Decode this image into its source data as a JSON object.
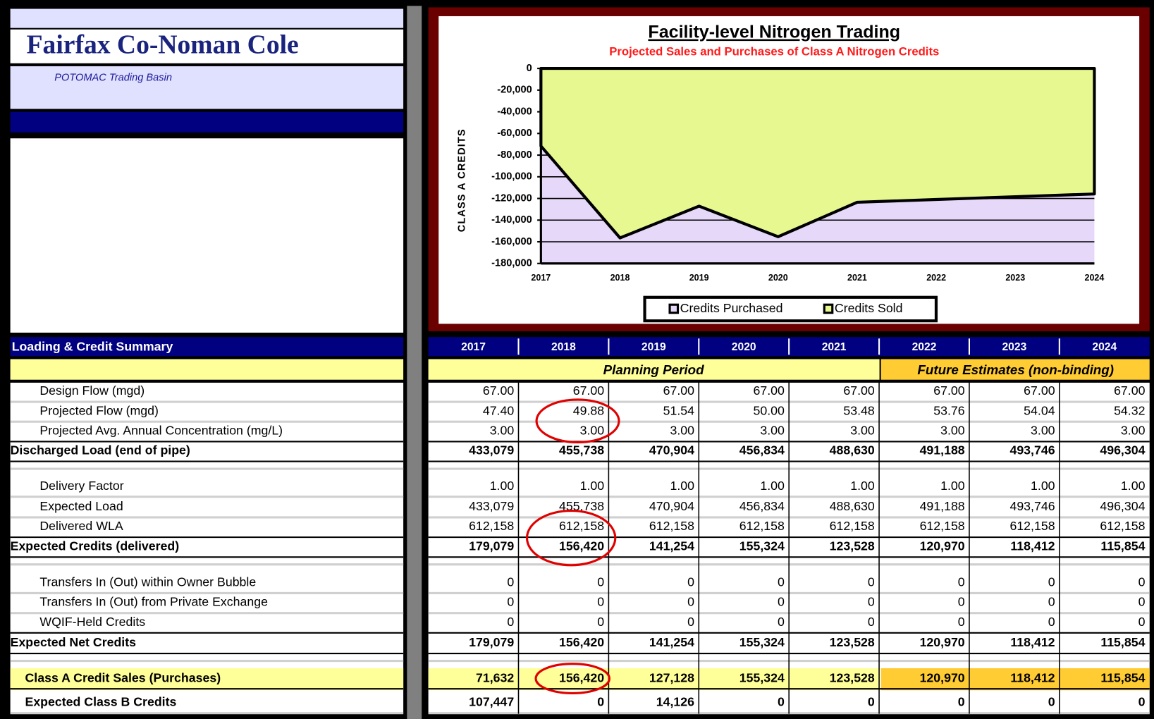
{
  "header": {
    "title": "Fairfax Co-Noman Cole",
    "subtitle": "POTOMAC Trading Basin"
  },
  "chart_data": {
    "type": "area",
    "title": "Facility-level Nitrogen Trading",
    "subtitle": "Projected Sales and Purchases of Class A Nitrogen Credits",
    "y_label": "CLASS A CREDITS",
    "categories": [
      "2017",
      "2018",
      "2019",
      "2020",
      "2021",
      "2022",
      "2023",
      "2024"
    ],
    "series": [
      {
        "name": "Credits Purchased",
        "color": "#e6d8f8",
        "values": [
          0,
          0,
          0,
          0,
          0,
          0,
          0,
          0
        ]
      },
      {
        "name": "Credits Sold",
        "color": "#e8f890",
        "values": [
          -71632,
          -156420,
          -127128,
          -155324,
          -123528,
          -120970,
          -118412,
          -115854
        ]
      }
    ],
    "plot_color": "#e6d8f8",
    "ylim": [
      -180000,
      0
    ],
    "yticks": [
      0,
      {
        "value": -20000,
        "label": "-20,000"
      },
      {
        "value": -40000,
        "label": "-40,000"
      },
      {
        "value": -60000,
        "label": "-60,000"
      },
      {
        "value": -80000,
        "label": "-80,000"
      },
      {
        "value": -100000,
        "label": "-100,000"
      },
      {
        "value": -120000,
        "label": "-120,000"
      },
      {
        "value": -140000,
        "label": "-140,000"
      },
      {
        "value": -160000,
        "label": "-160,000"
      },
      {
        "value": -180000,
        "label": "-180,000"
      }
    ],
    "grid": true,
    "legend": "bottom"
  },
  "table": {
    "title": "Loading & Credit Summary",
    "columns": [
      "2017",
      "2018",
      "2019",
      "2020",
      "2021",
      "2022",
      "2023",
      "2024"
    ],
    "periods": [
      "Planning Period",
      "Future Estimates (non-binding)"
    ],
    "rows": [
      {
        "label": "Design Flow (mgd)",
        "values": [
          "67.00",
          "67.00",
          "67.00",
          "67.00",
          "67.00",
          "67.00",
          "67.00",
          "67.00"
        ]
      },
      {
        "label": "Projected Flow (mgd)",
        "values": [
          "47.40",
          "49.88",
          "51.54",
          "50.00",
          "53.48",
          "53.76",
          "54.04",
          "54.32"
        ]
      },
      {
        "label": "Projected Avg. Annual Concentration (mg/L)",
        "values": [
          "3.00",
          "3.00",
          "3.00",
          "3.00",
          "3.00",
          "3.00",
          "3.00",
          "3.00"
        ]
      },
      {
        "label": "Discharged Load (end of pipe)",
        "values": [
          "433,079",
          "455,738",
          "470,904",
          "456,834",
          "488,630",
          "491,188",
          "493,746",
          "496,304"
        ]
      },
      {
        "label": "Delivery Factor",
        "values": [
          "1.00",
          "1.00",
          "1.00",
          "1.00",
          "1.00",
          "1.00",
          "1.00",
          "1.00"
        ]
      },
      {
        "label": "Expected Load",
        "values": [
          "433,079",
          "455,738",
          "470,904",
          "456,834",
          "488,630",
          "491,188",
          "493,746",
          "496,304"
        ]
      },
      {
        "label": "Delivered WLA",
        "values": [
          "612,158",
          "612,158",
          "612,158",
          "612,158",
          "612,158",
          "612,158",
          "612,158",
          "612,158"
        ]
      },
      {
        "label": "Expected Credits (delivered)",
        "values": [
          "179,079",
          "156,420",
          "141,254",
          "155,324",
          "123,528",
          "120,970",
          "118,412",
          "115,854"
        ]
      },
      {
        "label": "Transfers In (Out) within Owner Bubble",
        "values": [
          "0",
          "0",
          "0",
          "0",
          "0",
          "0",
          "0",
          "0"
        ]
      },
      {
        "label": "Transfers In (Out) from Private Exchange",
        "values": [
          "0",
          "0",
          "0",
          "0",
          "0",
          "0",
          "0",
          "0"
        ]
      },
      {
        "label": "WQIF-Held Credits",
        "values": [
          "0",
          "0",
          "0",
          "0",
          "0",
          "0",
          "0",
          "0"
        ]
      },
      {
        "label": "Expected Net Credits",
        "values": [
          "179,079",
          "156,420",
          "141,254",
          "155,324",
          "123,528",
          "120,970",
          "118,412",
          "115,854"
        ]
      },
      {
        "label": "Class A Credit Sales (Purchases)",
        "values": [
          "71,632",
          "156,420",
          "127,128",
          "155,324",
          "123,528",
          "120,970",
          "118,412",
          "115,854"
        ]
      },
      {
        "label": "Expected Class B Credits",
        "values": [
          "107,447",
          "0",
          "14,126",
          "0",
          "0",
          "0",
          "0",
          "0"
        ]
      }
    ]
  }
}
